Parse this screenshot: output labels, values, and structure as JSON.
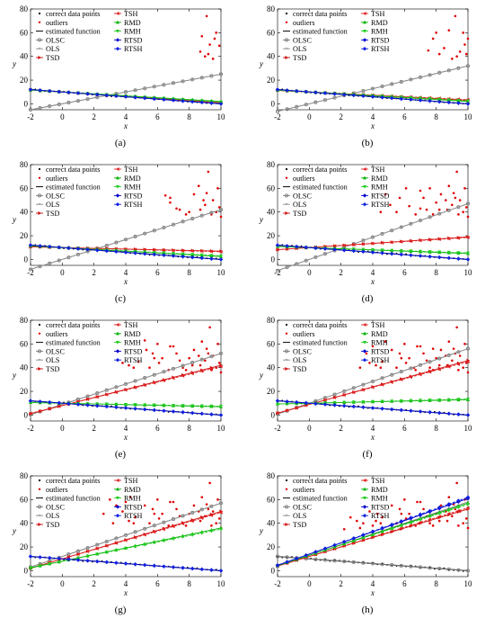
{
  "figure": {
    "legend_labels": [
      {
        "key": "correct",
        "text": "correct data points"
      },
      {
        "key": "outliers",
        "text": "outliers"
      },
      {
        "key": "estimated",
        "text": "estimated function"
      },
      {
        "key": "olsc",
        "text": "OLSC"
      },
      {
        "key": "ols",
        "text": "OLS"
      },
      {
        "key": "tsd",
        "text": "TSD"
      },
      {
        "key": "tsh",
        "text": "TSH"
      },
      {
        "key": "rmd",
        "text": "RMD"
      },
      {
        "key": "rmh",
        "text": "RMH"
      },
      {
        "key": "rtsd",
        "text": "RTSD"
      },
      {
        "key": "rtsh",
        "text": "RTSH"
      }
    ],
    "colors": {
      "correct": "#000000",
      "outliers": "#e00000",
      "estimated": "#000000",
      "olsc": "#7f7f7f",
      "ols": "#8c8c8c",
      "tsd": "#d01010",
      "tsh": "#e02020",
      "rmd": "#00b000",
      "rmh": "#22cc22",
      "rtsd": "#0000cc",
      "rtsh": "#1020e0"
    }
  },
  "chart_data": [
    {
      "panel_label": "(a)",
      "type": "scatter",
      "xlabel": "x",
      "ylabel": "y",
      "xlim": [
        -2,
        10
      ],
      "ylim": [
        -5,
        80
      ],
      "xticks": [
        -2,
        0,
        2,
        4,
        6,
        8,
        10
      ],
      "yticks": [
        0,
        20,
        40,
        60,
        80
      ],
      "outliers": [
        [
          9.1,
          74
        ],
        [
          8.8,
          57
        ],
        [
          9.7,
          60
        ],
        [
          9.3,
          50
        ],
        [
          9.9,
          49
        ],
        [
          8.7,
          44
        ],
        [
          9.2,
          42
        ],
        [
          9.5,
          38
        ],
        [
          9.6,
          55
        ],
        [
          9.0,
          40
        ]
      ],
      "lines": {
        "olsc": [
          0,
          2.5
        ],
        "ols": [
          0,
          2.5
        ],
        "tsd": [
          10,
          -0.9
        ],
        "tsh": [
          10,
          -0.9
        ],
        "rmd": [
          10,
          -0.8
        ],
        "rmh": [
          10,
          -0.85
        ],
        "rtsd": [
          10,
          -1
        ],
        "rtsh": [
          10,
          -1
        ]
      }
    },
    {
      "panel_label": "(b)",
      "type": "scatter",
      "xlabel": "x",
      "ylabel": "y",
      "xlim": [
        -2,
        10
      ],
      "ylim": [
        -5,
        80
      ],
      "xticks": [
        -2,
        0,
        2,
        4,
        6,
        8,
        10
      ],
      "yticks": [
        0,
        20,
        40,
        60,
        80
      ],
      "outliers": [
        [
          9.2,
          74
        ],
        [
          8.0,
          60
        ],
        [
          8.5,
          47
        ],
        [
          9.7,
          60
        ],
        [
          9.5,
          44
        ],
        [
          7.5,
          45
        ],
        [
          9.8,
          50
        ],
        [
          8.2,
          42
        ],
        [
          9.0,
          38
        ],
        [
          7.8,
          55
        ],
        [
          8.8,
          62
        ],
        [
          9.3,
          40
        ],
        [
          9.9,
          42
        ],
        [
          10,
          55
        ]
      ],
      "lines": {
        "olsc": [
          0,
          3.2
        ],
        "ols": [
          0,
          3.2
        ],
        "tsd": [
          10,
          -0.7
        ],
        "tsh": [
          10,
          -0.65
        ],
        "rmd": [
          10,
          -0.8
        ],
        "rmh": [
          10,
          -0.75
        ],
        "rtsd": [
          10,
          -1
        ],
        "rtsh": [
          10,
          -1
        ]
      }
    },
    {
      "panel_label": "(c)",
      "type": "scatter",
      "xlabel": "x",
      "ylabel": "y",
      "xlim": [
        -2,
        10
      ],
      "ylim": [
        -5,
        80
      ],
      "xticks": [
        -2,
        0,
        2,
        4,
        6,
        8,
        10
      ],
      "yticks": [
        0,
        20,
        40,
        60,
        80
      ],
      "outliers": [
        [
          9.2,
          74
        ],
        [
          8.6,
          62
        ],
        [
          9.8,
          60
        ],
        [
          6.5,
          54
        ],
        [
          6.8,
          48
        ],
        [
          7.2,
          43
        ],
        [
          8.0,
          40
        ],
        [
          8.9,
          50
        ],
        [
          9.0,
          46
        ],
        [
          9.4,
          38
        ],
        [
          9.7,
          40
        ],
        [
          9.9,
          44
        ],
        [
          6.8,
          52
        ],
        [
          8.3,
          55
        ],
        [
          7.4,
          42
        ],
        [
          10,
          36
        ],
        [
          8.7,
          42
        ],
        [
          9.5,
          50
        ],
        [
          7.8,
          38
        ],
        [
          9.1,
          56
        ]
      ],
      "lines": {
        "olsc": [
          0,
          4.2
        ],
        "ols": [
          0,
          4.2
        ],
        "tsd": [
          10,
          -0.3
        ],
        "tsh": [
          10,
          -0.35
        ],
        "rmd": [
          10,
          -0.75
        ],
        "rmh": [
          10,
          -0.7
        ],
        "rtsd": [
          10,
          -1
        ],
        "rtsh": [
          10,
          -1
        ]
      }
    },
    {
      "panel_label": "(d)",
      "type": "scatter",
      "xlabel": "x",
      "ylabel": "y",
      "xlim": [
        -2,
        10
      ],
      "ylim": [
        -5,
        80
      ],
      "xticks": [
        -2,
        0,
        2,
        4,
        6,
        8,
        10
      ],
      "yticks": [
        0,
        20,
        40,
        60,
        80
      ],
      "outliers": [
        [
          9.3,
          74
        ],
        [
          8.8,
          62
        ],
        [
          9.8,
          60
        ],
        [
          4.8,
          55
        ],
        [
          5.1,
          46
        ],
        [
          6.3,
          45
        ],
        [
          7.0,
          43
        ],
        [
          7.2,
          52
        ],
        [
          7.6,
          60
        ],
        [
          8.2,
          42
        ],
        [
          8.6,
          50
        ],
        [
          9.0,
          46
        ],
        [
          9.4,
          38
        ],
        [
          9.7,
          40
        ],
        [
          9.9,
          44
        ],
        [
          6.7,
          38
        ],
        [
          5.7,
          52
        ],
        [
          8.3,
          55
        ],
        [
          7.4,
          42
        ],
        [
          10,
          36
        ],
        [
          8.7,
          42
        ],
        [
          9.5,
          50
        ],
        [
          7.8,
          38
        ],
        [
          9.1,
          56
        ],
        [
          6.1,
          60
        ],
        [
          4.5,
          40
        ],
        [
          5.5,
          40
        ],
        [
          8.0,
          48
        ],
        [
          9.2,
          52
        ],
        [
          7.0,
          58
        ]
      ],
      "lines": {
        "olsc": [
          0,
          4.7
        ],
        "ols": [
          0,
          4.7
        ],
        "tsd": [
          10,
          0.9
        ],
        "tsh": [
          10,
          0.85
        ],
        "rmd": [
          10,
          -0.5
        ],
        "rmh": [
          10,
          -0.45
        ],
        "rtsd": [
          10,
          -1
        ],
        "rtsh": [
          10,
          -1
        ]
      }
    },
    {
      "panel_label": "(e)",
      "type": "scatter",
      "xlabel": "x",
      "ylabel": "y",
      "xlim": [
        -2,
        10
      ],
      "ylim": [
        -5,
        80
      ],
      "xticks": [
        -2,
        0,
        2,
        4,
        6,
        8,
        10
      ],
      "yticks": [
        0,
        20,
        40,
        60,
        80
      ],
      "outliers": [
        [
          9.3,
          74
        ],
        [
          8.8,
          62
        ],
        [
          9.8,
          60
        ],
        [
          5.2,
          63
        ],
        [
          5.3,
          55
        ],
        [
          4.8,
          45
        ],
        [
          6.0,
          60
        ],
        [
          6.3,
          48
        ],
        [
          6.8,
          58
        ],
        [
          7.2,
          52
        ],
        [
          7.6,
          40
        ],
        [
          8.2,
          42
        ],
        [
          8.6,
          50
        ],
        [
          9.0,
          46
        ],
        [
          9.4,
          38
        ],
        [
          9.7,
          40
        ],
        [
          9.9,
          44
        ],
        [
          6.7,
          38
        ],
        [
          5.7,
          52
        ],
        [
          8.3,
          55
        ],
        [
          7.4,
          46
        ],
        [
          10,
          36
        ],
        [
          8.7,
          42
        ],
        [
          9.5,
          50
        ],
        [
          7.8,
          38
        ],
        [
          9.1,
          56
        ],
        [
          6.1,
          44
        ],
        [
          4.5,
          40
        ],
        [
          5.5,
          40
        ],
        [
          8.0,
          48
        ],
        [
          9.2,
          52
        ],
        [
          7.0,
          58
        ],
        [
          4.2,
          42
        ],
        [
          3.8,
          44
        ],
        [
          5.8,
          48
        ]
      ],
      "lines": {
        "olsc": [
          9,
          4.3
        ],
        "ols": [
          9,
          4.3
        ],
        "tsd": [
          8,
          3.4
        ],
        "tsh": [
          8,
          3.3
        ],
        "rmd": [
          10,
          -0.3
        ],
        "rmh": [
          10,
          -0.25
        ],
        "rtsd": [
          10,
          -1
        ],
        "rtsh": [
          10,
          -1
        ]
      }
    },
    {
      "panel_label": "(f)",
      "type": "scatter",
      "xlabel": "x",
      "ylabel": "y",
      "xlim": [
        -2,
        10
      ],
      "ylim": [
        -5,
        80
      ],
      "xticks": [
        -2,
        0,
        2,
        4,
        6,
        8,
        10
      ],
      "yticks": [
        0,
        20,
        40,
        60,
        80
      ],
      "outliers": [
        [
          9.3,
          74
        ],
        [
          8.8,
          62
        ],
        [
          9.8,
          60
        ],
        [
          4.8,
          62
        ],
        [
          5.2,
          55
        ],
        [
          4.6,
          45
        ],
        [
          6.0,
          60
        ],
        [
          6.3,
          48
        ],
        [
          6.8,
          58
        ],
        [
          7.2,
          52
        ],
        [
          7.6,
          40
        ],
        [
          8.2,
          42
        ],
        [
          8.6,
          50
        ],
        [
          9.0,
          46
        ],
        [
          9.4,
          38
        ],
        [
          9.7,
          40
        ],
        [
          9.9,
          44
        ],
        [
          6.7,
          38
        ],
        [
          5.7,
          52
        ],
        [
          8.3,
          55
        ],
        [
          7.4,
          46
        ],
        [
          10,
          36
        ],
        [
          8.7,
          42
        ],
        [
          9.5,
          50
        ],
        [
          7.8,
          38
        ],
        [
          9.1,
          56
        ],
        [
          6.1,
          44
        ],
        [
          4.5,
          40
        ],
        [
          5.5,
          40
        ],
        [
          8.0,
          48
        ],
        [
          9.2,
          52
        ],
        [
          7.0,
          58
        ],
        [
          4.2,
          42
        ],
        [
          3.8,
          44
        ],
        [
          5.8,
          48
        ],
        [
          3.2,
          40
        ],
        [
          3.6,
          52
        ],
        [
          4.0,
          58
        ],
        [
          6.6,
          40
        ],
        [
          7.8,
          56
        ]
      ],
      "lines": {
        "olsc": [
          10,
          4.6
        ],
        "ols": [
          10,
          4.6
        ],
        "tsd": [
          9,
          3.7
        ],
        "tsh": [
          9,
          3.6
        ],
        "rmd": [
          10,
          0.3
        ],
        "rmh": [
          10,
          0.35
        ],
        "rtsd": [
          10,
          -1
        ],
        "rtsh": [
          10,
          -1
        ]
      }
    },
    {
      "panel_label": "(g)",
      "type": "scatter",
      "xlabel": "x",
      "ylabel": "y",
      "xlim": [
        -2,
        10
      ],
      "ylim": [
        -5,
        80
      ],
      "xticks": [
        -2,
        0,
        2,
        4,
        6,
        8,
        10
      ],
      "yticks": [
        0,
        20,
        40,
        60,
        80
      ],
      "outliers": [
        [
          9.3,
          74
        ],
        [
          8.8,
          62
        ],
        [
          9.8,
          60
        ],
        [
          3.0,
          60
        ],
        [
          3.4,
          55
        ],
        [
          3.8,
          50
        ],
        [
          4.3,
          62
        ],
        [
          4.6,
          45
        ],
        [
          5.2,
          55
        ],
        [
          6.0,
          60
        ],
        [
          6.3,
          48
        ],
        [
          6.8,
          58
        ],
        [
          7.2,
          52
        ],
        [
          7.6,
          40
        ],
        [
          8.2,
          42
        ],
        [
          8.6,
          50
        ],
        [
          9.0,
          46
        ],
        [
          9.4,
          38
        ],
        [
          9.7,
          40
        ],
        [
          9.9,
          44
        ],
        [
          6.7,
          38
        ],
        [
          5.7,
          52
        ],
        [
          8.3,
          55
        ],
        [
          7.4,
          46
        ],
        [
          10,
          36
        ],
        [
          8.7,
          42
        ],
        [
          9.5,
          50
        ],
        [
          7.8,
          38
        ],
        [
          9.1,
          56
        ],
        [
          6.1,
          44
        ],
        [
          4.5,
          40
        ],
        [
          5.5,
          40
        ],
        [
          8.0,
          48
        ],
        [
          9.2,
          52
        ],
        [
          7.0,
          58
        ],
        [
          4.2,
          42
        ],
        [
          2.6,
          48
        ],
        [
          5.8,
          48
        ],
        [
          3.2,
          40
        ],
        [
          4.0,
          58
        ]
      ],
      "lines": {
        "olsc": [
          12,
          4.5
        ],
        "ols": [
          12,
          4.5
        ],
        "tsd": [
          10,
          4
        ],
        "tsh": [
          10,
          3.9
        ],
        "rmd": [
          8,
          2.8
        ],
        "rmh": [
          8,
          2.7
        ],
        "rtsd": [
          10,
          -1
        ],
        "rtsh": [
          10,
          -1
        ]
      }
    },
    {
      "panel_label": "(h)",
      "type": "scatter",
      "xlabel": "x",
      "ylabel": "y",
      "xlim": [
        -2,
        10
      ],
      "ylim": [
        -5,
        80
      ],
      "xticks": [
        -2,
        0,
        2,
        4,
        6,
        8,
        10
      ],
      "yticks": [
        0,
        20,
        40,
        60,
        80
      ],
      "outliers": [
        [
          9.3,
          74
        ],
        [
          8.8,
          62
        ],
        [
          9.8,
          60
        ],
        [
          2.6,
          45
        ],
        [
          3.0,
          42
        ],
        [
          3.4,
          40
        ],
        [
          3.8,
          50
        ],
        [
          4.3,
          48
        ],
        [
          4.6,
          45
        ],
        [
          5.2,
          55
        ],
        [
          6.0,
          60
        ],
        [
          6.3,
          48
        ],
        [
          6.8,
          58
        ],
        [
          7.2,
          52
        ],
        [
          7.6,
          40
        ],
        [
          8.2,
          42
        ],
        [
          8.6,
          50
        ],
        [
          9.0,
          46
        ],
        [
          9.4,
          38
        ],
        [
          9.7,
          40
        ],
        [
          9.9,
          44
        ],
        [
          6.7,
          38
        ],
        [
          5.7,
          52
        ],
        [
          8.3,
          55
        ],
        [
          7.4,
          46
        ],
        [
          10,
          36
        ],
        [
          8.7,
          42
        ],
        [
          9.5,
          50
        ],
        [
          7.8,
          38
        ],
        [
          9.1,
          56
        ],
        [
          6.1,
          44
        ],
        [
          4.5,
          40
        ],
        [
          5.5,
          40
        ],
        [
          8.0,
          48
        ],
        [
          9.2,
          52
        ],
        [
          7.0,
          58
        ],
        [
          4.2,
          42
        ],
        [
          5.8,
          48
        ],
        [
          3.2,
          36
        ],
        [
          4.0,
          38
        ],
        [
          2.2,
          35
        ]
      ],
      "lines": {
        "olsc": [
          10,
          -1
        ],
        "ols": [
          13,
          4.5
        ],
        "tsd": [
          12,
          4
        ],
        "tsh": [
          12,
          4.1
        ],
        "rmd": [
          13,
          4.4
        ],
        "rmh": [
          13,
          4.3
        ],
        "rtsd": [
          14,
          4.7
        ],
        "rtsh": [
          14,
          4.8
        ]
      }
    }
  ]
}
